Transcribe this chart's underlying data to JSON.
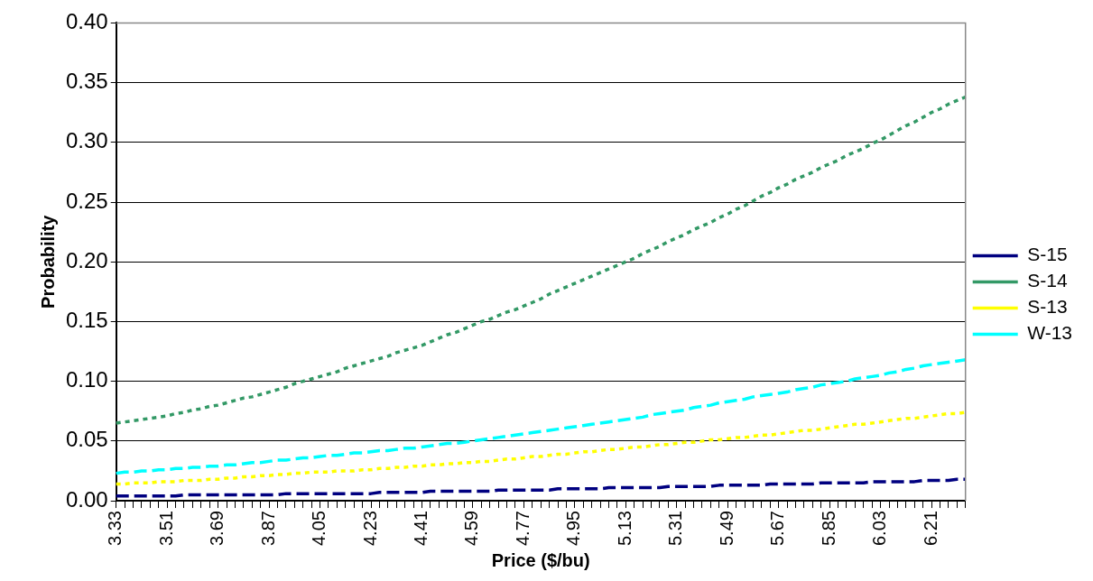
{
  "chart_data": {
    "type": "line",
    "xlabel": "Price ($/bu)",
    "ylabel": "Probability",
    "categories": [
      "3.33",
      null,
      null,
      null,
      null,
      null,
      "3.51",
      null,
      null,
      null,
      null,
      null,
      "3.69",
      null,
      null,
      null,
      null,
      null,
      "3.87",
      null,
      null,
      null,
      null,
      null,
      "4.05",
      null,
      null,
      null,
      null,
      null,
      "4.23",
      null,
      null,
      null,
      null,
      null,
      "4.41",
      null,
      null,
      null,
      null,
      null,
      "4.59",
      null,
      null,
      null,
      null,
      null,
      "4.77",
      null,
      null,
      null,
      null,
      null,
      "4.95",
      null,
      null,
      null,
      null,
      null,
      "5.13",
      null,
      null,
      null,
      null,
      null,
      "5.31",
      null,
      null,
      null,
      null,
      null,
      "5.49",
      null,
      null,
      null,
      null,
      null,
      "5.67",
      null,
      null,
      null,
      null,
      null,
      "5.85",
      null,
      null,
      null,
      null,
      null,
      "6.03",
      null,
      null,
      null,
      null,
      null,
      "6.21",
      null,
      null,
      null,
      null
    ],
    "series": [
      {
        "name": "S-15",
        "color": "#000080",
        "line_style": "dashed",
        "values": [
          0.004,
          0.004,
          0.004,
          0.004,
          0.004,
          0.004,
          0.004,
          0.004,
          0.005,
          0.005,
          0.005,
          0.005,
          0.005,
          0.005,
          0.005,
          0.005,
          0.005,
          0.005,
          0.005,
          0.005,
          0.006,
          0.006,
          0.006,
          0.006,
          0.006,
          0.006,
          0.006,
          0.006,
          0.006,
          0.006,
          0.006,
          0.007,
          0.007,
          0.007,
          0.007,
          0.007,
          0.007,
          0.008,
          0.008,
          0.008,
          0.008,
          0.008,
          0.008,
          0.008,
          0.008,
          0.009,
          0.009,
          0.009,
          0.009,
          0.009,
          0.009,
          0.009,
          0.01,
          0.01,
          0.01,
          0.01,
          0.01,
          0.01,
          0.011,
          0.011,
          0.011,
          0.011,
          0.011,
          0.011,
          0.011,
          0.012,
          0.012,
          0.012,
          0.012,
          0.012,
          0.012,
          0.013,
          0.013,
          0.013,
          0.013,
          0.013,
          0.013,
          0.014,
          0.014,
          0.014,
          0.014,
          0.014,
          0.014,
          0.015,
          0.015,
          0.015,
          0.015,
          0.015,
          0.015,
          0.016,
          0.016,
          0.016,
          0.016,
          0.016,
          0.016,
          0.017,
          0.017,
          0.017,
          0.017,
          0.018,
          0.018
        ]
      },
      {
        "name": "S-14",
        "color": "#339966",
        "line_style": "dotted",
        "values": [
          0.065,
          0.066,
          0.067,
          0.068,
          0.069,
          0.07,
          0.071,
          0.073,
          0.074,
          0.076,
          0.077,
          0.079,
          0.08,
          0.082,
          0.084,
          0.086,
          0.087,
          0.089,
          0.091,
          0.093,
          0.095,
          0.098,
          0.1,
          0.102,
          0.104,
          0.106,
          0.108,
          0.111,
          0.113,
          0.115,
          0.117,
          0.119,
          0.121,
          0.124,
          0.126,
          0.128,
          0.13,
          0.133,
          0.136,
          0.139,
          0.141,
          0.144,
          0.147,
          0.15,
          0.152,
          0.155,
          0.158,
          0.16,
          0.163,
          0.166,
          0.169,
          0.173,
          0.176,
          0.179,
          0.182,
          0.185,
          0.188,
          0.191,
          0.194,
          0.197,
          0.2,
          0.203,
          0.207,
          0.21,
          0.213,
          0.217,
          0.22,
          0.223,
          0.227,
          0.23,
          0.233,
          0.237,
          0.24,
          0.244,
          0.247,
          0.251,
          0.255,
          0.258,
          0.262,
          0.265,
          0.269,
          0.272,
          0.275,
          0.279,
          0.282,
          0.285,
          0.289,
          0.292,
          0.295,
          0.299,
          0.302,
          0.306,
          0.31,
          0.314,
          0.317,
          0.321,
          0.325,
          0.328,
          0.332,
          0.335,
          0.338
        ]
      },
      {
        "name": "S-13",
        "color": "#ffff00",
        "line_style": "dotted",
        "values": [
          0.014,
          0.014,
          0.015,
          0.015,
          0.015,
          0.016,
          0.016,
          0.016,
          0.017,
          0.017,
          0.017,
          0.018,
          0.018,
          0.019,
          0.019,
          0.02,
          0.02,
          0.021,
          0.021,
          0.022,
          0.022,
          0.023,
          0.023,
          0.024,
          0.024,
          0.024,
          0.025,
          0.025,
          0.025,
          0.026,
          0.026,
          0.027,
          0.027,
          0.028,
          0.028,
          0.029,
          0.029,
          0.03,
          0.03,
          0.031,
          0.031,
          0.032,
          0.032,
          0.033,
          0.033,
          0.034,
          0.035,
          0.035,
          0.036,
          0.037,
          0.037,
          0.038,
          0.039,
          0.039,
          0.04,
          0.041,
          0.041,
          0.042,
          0.043,
          0.043,
          0.044,
          0.045,
          0.045,
          0.046,
          0.047,
          0.047,
          0.048,
          0.049,
          0.049,
          0.05,
          0.051,
          0.051,
          0.052,
          0.053,
          0.053,
          0.054,
          0.055,
          0.055,
          0.056,
          0.057,
          0.058,
          0.059,
          0.059,
          0.06,
          0.061,
          0.062,
          0.063,
          0.064,
          0.064,
          0.065,
          0.066,
          0.067,
          0.068,
          0.069,
          0.069,
          0.07,
          0.071,
          0.072,
          0.073,
          0.073,
          0.074
        ]
      },
      {
        "name": "W-13",
        "color": "#00ffff",
        "line_style": "dashed",
        "values": [
          0.023,
          0.024,
          0.024,
          0.025,
          0.025,
          0.026,
          0.026,
          0.027,
          0.027,
          0.028,
          0.028,
          0.029,
          0.029,
          0.03,
          0.03,
          0.031,
          0.032,
          0.032,
          0.033,
          0.034,
          0.034,
          0.035,
          0.036,
          0.036,
          0.037,
          0.038,
          0.038,
          0.039,
          0.04,
          0.04,
          0.041,
          0.042,
          0.042,
          0.043,
          0.044,
          0.044,
          0.045,
          0.046,
          0.047,
          0.048,
          0.048,
          0.049,
          0.05,
          0.051,
          0.052,
          0.053,
          0.054,
          0.055,
          0.056,
          0.057,
          0.058,
          0.059,
          0.06,
          0.061,
          0.062,
          0.063,
          0.064,
          0.065,
          0.066,
          0.067,
          0.068,
          0.069,
          0.07,
          0.072,
          0.073,
          0.074,
          0.075,
          0.076,
          0.078,
          0.079,
          0.08,
          0.082,
          0.083,
          0.084,
          0.085,
          0.087,
          0.088,
          0.089,
          0.09,
          0.091,
          0.093,
          0.094,
          0.095,
          0.097,
          0.098,
          0.099,
          0.1,
          0.102,
          0.103,
          0.104,
          0.105,
          0.107,
          0.108,
          0.11,
          0.111,
          0.113,
          0.114,
          0.115,
          0.116,
          0.117,
          0.118
        ]
      }
    ],
    "ylim": [
      0,
      0.4
    ],
    "yticks": [
      {
        "value": 0,
        "label": "0.00"
      },
      {
        "value": 0.05,
        "label": "0.05"
      },
      {
        "value": 0.1,
        "label": "0.10"
      },
      {
        "value": 0.15,
        "label": "0.15"
      },
      {
        "value": 0.2,
        "label": "0.20"
      },
      {
        "value": 0.25,
        "label": "0.25"
      },
      {
        "value": 0.3,
        "label": "0.30"
      },
      {
        "value": 0.35,
        "label": "0.35"
      },
      {
        "value": 0.4,
        "label": "0.40"
      }
    ],
    "grid": "y",
    "legend": "right"
  }
}
